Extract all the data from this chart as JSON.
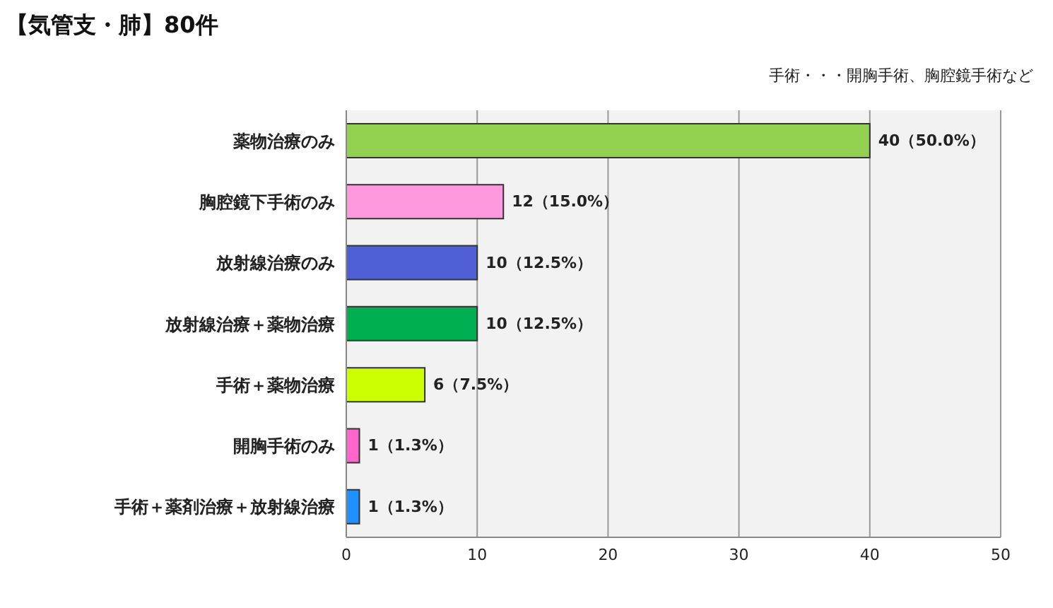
{
  "chart_data": {
    "type": "bar",
    "orientation": "horizontal",
    "title": "【気管支・肺】80件",
    "annotations": [
      "手術・・・開胸手術、胸腔鏡手術など"
    ],
    "categories": [
      "薬物治療のみ",
      "胸腔鏡下手術のみ",
      "放射線治療のみ",
      "放射線治療＋薬物治療",
      "手術＋薬物治療",
      "開胸手術のみ",
      "手術＋薬剤治療＋放射線治療"
    ],
    "values": [
      40,
      12,
      10,
      10,
      6,
      1,
      1
    ],
    "colors": [
      "#92d050",
      "#ff99dd",
      "#4f5fd6",
      "#00b050",
      "#ccff00",
      "#ff66cc",
      "#1e90ff"
    ],
    "value_labels": [
      "40（50.0%）",
      "12（15.0%）",
      "10（12.5%）",
      "10（12.5%）",
      "6（7.5%）",
      "1（1.3%）",
      "1（1.3%）"
    ],
    "xlim": [
      0,
      50
    ],
    "xticks": [
      0,
      10,
      20,
      30,
      40,
      50
    ],
    "grid": "x"
  }
}
